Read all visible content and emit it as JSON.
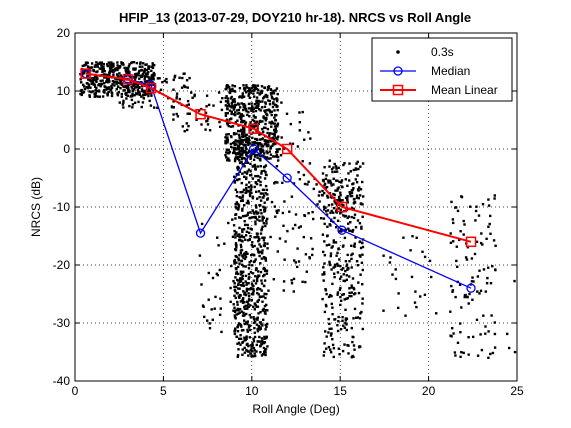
{
  "chart_data": {
    "type": "scatter",
    "title": "HFIP_13 (2013-07-29, DOY210 hr-18).  NRCS vs Roll Angle",
    "xlabel": "Roll Angle (Deg)",
    "ylabel": "NRCS (dB)",
    "xlim": [
      0,
      25
    ],
    "ylim": [
      -40,
      20
    ],
    "xticks": [
      "0",
      "5",
      "10",
      "15",
      "20",
      "25"
    ],
    "yticks": [
      "20",
      "10",
      "0",
      "-10",
      "-20",
      "-30",
      "-40"
    ],
    "grid": true,
    "legend_position": "top-right",
    "series": [
      {
        "name": "0.3s",
        "style": "points",
        "color": "#000000",
        "clusters": [
          {
            "x": [
              0.3,
              4.5
            ],
            "y": [
              9,
              15
            ],
            "n": 420
          },
          {
            "x": [
              2.5,
              6.5
            ],
            "y": [
              7,
              13
            ],
            "n": 90
          },
          {
            "x": [
              5.5,
              8.5
            ],
            "y": [
              3,
              10
            ],
            "n": 40
          },
          {
            "x": [
              8.5,
              11.5
            ],
            "y": [
              -2,
              11
            ],
            "n": 520
          },
          {
            "x": [
              9.0,
              10.9
            ],
            "y": [
              -36,
              2
            ],
            "n": 700
          },
          {
            "x": [
              7.0,
              9.3
            ],
            "y": [
              -32,
              -12
            ],
            "n": 45
          },
          {
            "x": [
              10.9,
              13.5
            ],
            "y": [
              -25,
              8
            ],
            "n": 90
          },
          {
            "x": [
              14.0,
              16.3
            ],
            "y": [
              -36,
              -2
            ],
            "n": 330
          },
          {
            "x": [
              13.5,
              16.0
            ],
            "y": [
              -12,
              -5
            ],
            "n": 60
          },
          {
            "x": [
              17.0,
              20.5
            ],
            "y": [
              -30,
              -15
            ],
            "n": 25
          },
          {
            "x": [
              21.2,
              23.8
            ],
            "y": [
              -36,
              -8
            ],
            "n": 110
          },
          {
            "x": [
              24.3,
              24.9
            ],
            "y": [
              -36,
              -20
            ],
            "n": 4
          }
        ]
      },
      {
        "name": "Median",
        "style": "line-circle",
        "color": "#0000ff",
        "x": [
          0.6,
          3.0,
          4.3,
          7.1,
          10.1,
          12.0,
          15.1,
          22.4
        ],
        "y": [
          13,
          12,
          11,
          -14.5,
          0,
          -5,
          -14,
          -24
        ]
      },
      {
        "name": "Mean Linear",
        "style": "line-square",
        "color": "#ff0000",
        "x": [
          0.6,
          3.0,
          4.3,
          7.1,
          10.1,
          12.0,
          15.1,
          22.4
        ],
        "y": [
          13,
          12,
          10.5,
          6,
          3.5,
          0,
          -10,
          -16
        ]
      }
    ]
  }
}
